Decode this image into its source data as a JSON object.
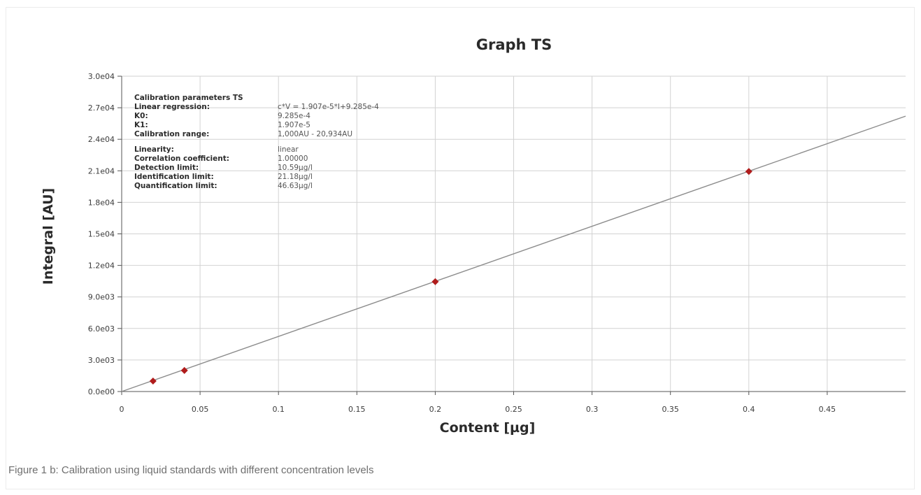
{
  "caption": "Figure 1 b: Calibration using liquid standards with different concentration levels",
  "parameters_box": {
    "title": "Calibration parameters TS",
    "group1": [
      {
        "label": "Linear regression:",
        "value": "c*V = 1.907e-5*I+9.285e-4"
      },
      {
        "label": "K0:",
        "value": "9.285e-4"
      },
      {
        "label": "K1:",
        "value": "1.907e-5"
      },
      {
        "label": "Calibration range:",
        "value": "1,000AU - 20,934AU"
      }
    ],
    "group2": [
      {
        "label": "Linearity:",
        "value": "linear"
      },
      {
        "label": "Correlation coefficient:",
        "value": "1.00000"
      },
      {
        "label": "Detection limit:",
        "value": "10.59µg/l"
      },
      {
        "label": "Identification limit:",
        "value": "21.18µg/l"
      },
      {
        "label": "Quantification limit:",
        "value": "46.63µg/l"
      }
    ]
  },
  "colors": {
    "marker": "#b01c1c",
    "line": "#8c8c8c",
    "grid": "#d2d2d2",
    "axis": "#555555"
  },
  "chart_data": {
    "type": "scatter",
    "title": "Graph TS",
    "xlabel": "Content [µg]",
    "ylabel": "Integral [AU]",
    "xlim": [
      0,
      0.5
    ],
    "ylim": [
      0,
      30000
    ],
    "x_ticks": [
      0,
      0.05,
      0.1,
      0.15,
      0.2,
      0.25,
      0.3,
      0.35,
      0.4,
      0.45
    ],
    "x_tick_labels": [
      "0",
      "0.05",
      "0.1",
      "0.15",
      "0.2",
      "0.25",
      "0.3",
      "0.35",
      "0.4",
      "0.45"
    ],
    "y_ticks": [
      0,
      3000,
      6000,
      9000,
      12000,
      15000,
      18000,
      21000,
      24000,
      27000,
      30000
    ],
    "y_tick_labels": [
      "0.0e00",
      "3.0e03",
      "6.0e03",
      "9.0e03",
      "1.2e04",
      "1.5e04",
      "1.8e04",
      "2.1e04",
      "2.4e04",
      "2.7e04",
      "3.0e04"
    ],
    "grid": true,
    "series": [
      {
        "type": "scatter",
        "points": [
          {
            "x": 0.02,
            "y": 1000
          },
          {
            "x": 0.04,
            "y": 2000
          },
          {
            "x": 0.2,
            "y": 10450
          },
          {
            "x": 0.4,
            "y": 20934
          }
        ]
      },
      {
        "type": "line",
        "points": [
          {
            "x": 0,
            "y": 0
          },
          {
            "x": 0.5,
            "y": 26200
          }
        ]
      }
    ]
  }
}
